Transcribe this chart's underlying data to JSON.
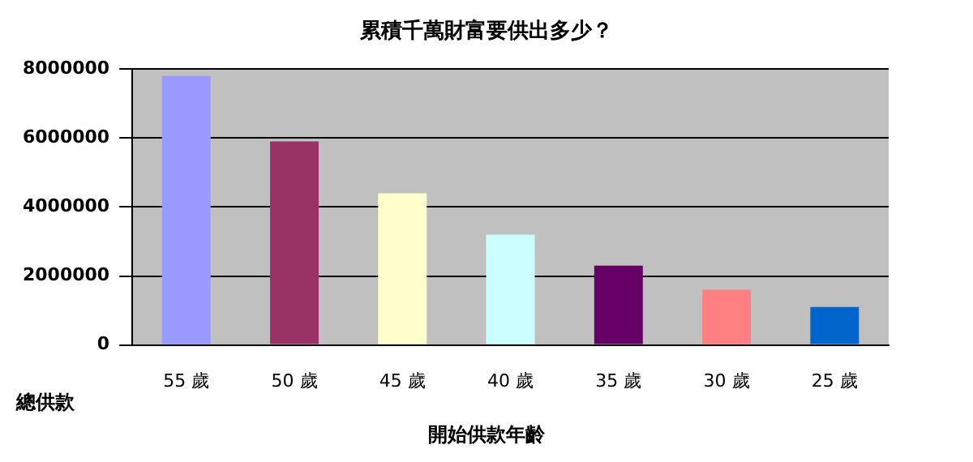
{
  "chart_data": {
    "type": "bar",
    "title": "累積千萬財富要供出多少？",
    "xlabel": "開始供款年齡",
    "ylabel": "總供款",
    "categories": [
      "55 歲",
      "50 歲",
      "45 歲",
      "40 歲",
      "35 歲",
      "30 歲",
      "25 歲"
    ],
    "values": [
      7800000,
      5900000,
      4400000,
      3200000,
      2300000,
      1600000,
      1100000
    ],
    "colors": [
      "#9999ff",
      "#993366",
      "#ffffcc",
      "#ccffff",
      "#660066",
      "#ff8080",
      "#0066cc"
    ],
    "ylim": [
      0,
      8000000
    ],
    "yticks": [
      0,
      2000000,
      4000000,
      6000000,
      8000000
    ],
    "grid": "y",
    "legend": false
  }
}
